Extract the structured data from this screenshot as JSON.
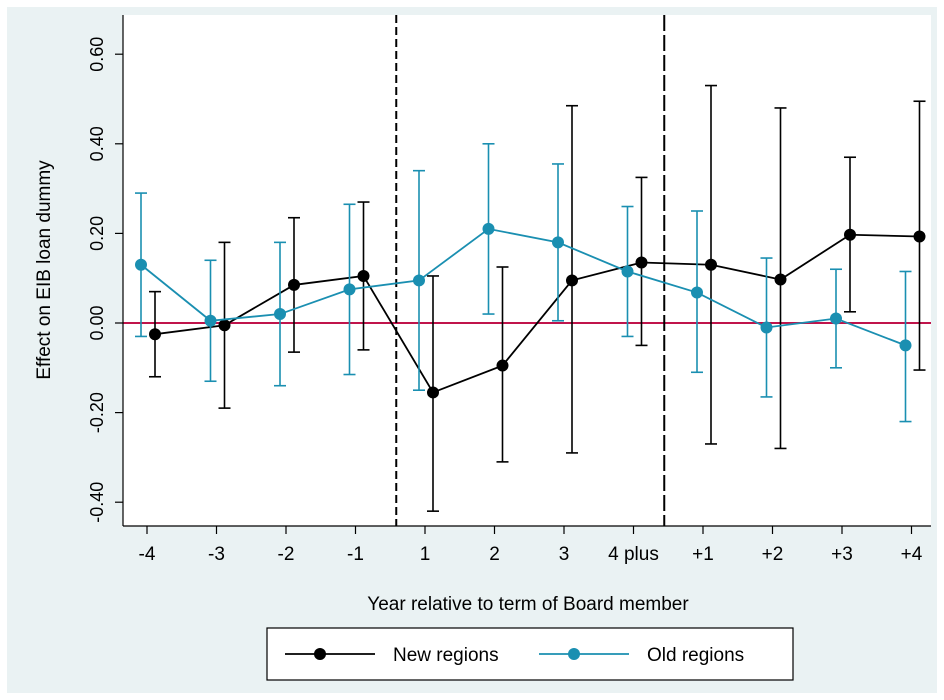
{
  "chart_data": {
    "type": "line",
    "xlabel": "Year relative to term of Board member",
    "ylabel": "Effect on EIB loan dummy",
    "categories": [
      "-4",
      "-3",
      "-2",
      "-1",
      "1",
      "2",
      "3",
      "4 plus",
      "+1",
      "+2",
      "+3",
      "+4"
    ],
    "ylim": [
      -0.45,
      0.63
    ],
    "yticks": [
      -0.4,
      -0.2,
      0.0,
      0.2,
      0.4,
      0.6
    ],
    "ytick_labels": [
      "-0.40",
      "-0.20",
      "0.00",
      "0.20",
      "0.40",
      "0.60"
    ],
    "reference_line": {
      "y": 0.0,
      "color": "#c0144b"
    },
    "vertical_lines": [
      {
        "x_between": [
          "-1",
          "1"
        ],
        "style": "short-dash"
      },
      {
        "x_between": [
          "4 plus",
          "+1"
        ],
        "style": "long-dash"
      }
    ],
    "grid": false,
    "legend": {
      "placement": "bottom",
      "entries": [
        "New regions",
        "Old regions"
      ]
    },
    "series": [
      {
        "name": "New regions",
        "color": "#000000",
        "values": [
          -0.025,
          -0.005,
          0.085,
          0.105,
          -0.155,
          -0.095,
          0.095,
          0.135,
          0.13,
          0.097,
          0.197,
          0.193
        ],
        "ci_low": [
          -0.12,
          -0.19,
          -0.065,
          -0.06,
          -0.42,
          -0.31,
          -0.29,
          -0.05,
          -0.27,
          -0.28,
          0.025,
          -0.105
        ],
        "ci_high": [
          0.07,
          0.18,
          0.235,
          0.27,
          0.105,
          0.125,
          0.485,
          0.325,
          0.53,
          0.48,
          0.37,
          0.495
        ]
      },
      {
        "name": "Old regions",
        "color": "#1a8fb1",
        "values": [
          0.13,
          0.005,
          0.02,
          0.075,
          0.095,
          0.21,
          0.18,
          0.115,
          0.068,
          -0.01,
          0.01,
          -0.05
        ],
        "ci_low": [
          -0.03,
          -0.13,
          -0.14,
          -0.115,
          -0.15,
          0.02,
          0.005,
          -0.03,
          -0.11,
          -0.165,
          -0.1,
          -0.22
        ],
        "ci_high": [
          0.29,
          0.14,
          0.18,
          0.265,
          0.34,
          0.4,
          0.355,
          0.26,
          0.25,
          0.145,
          0.12,
          0.115
        ]
      }
    ]
  }
}
